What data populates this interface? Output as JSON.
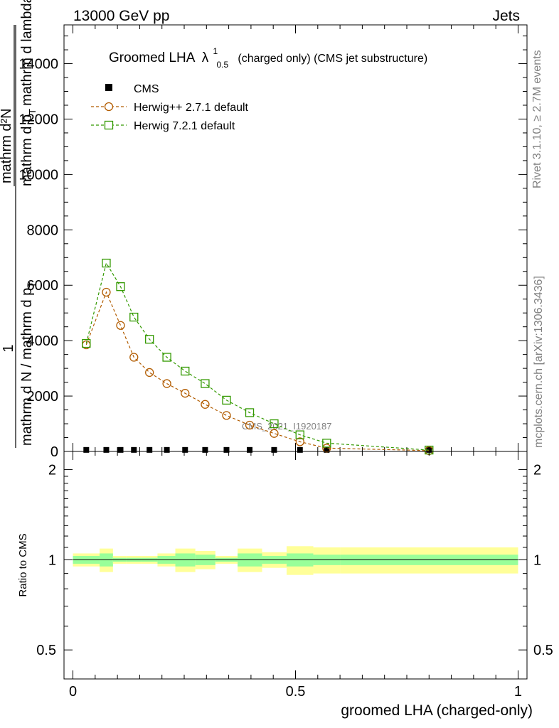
{
  "header": {
    "left": "13000 GeV pp",
    "right": "Jets"
  },
  "side": {
    "rivet": "Rivet 3.1.10, ≥ 2.7M events",
    "mcplots": "mcplots.cern.ch [arXiv:1306.3436]"
  },
  "watermark": "CMS_2021_I1920187",
  "chart_data": [
    {
      "type": "line",
      "title_main": "Groomed LHA",
      "title_lambda": "λ",
      "title_sup": "1",
      "title_sub": "0.5",
      "title_rest": "(charged only) (CMS jet substructure)",
      "xlabel": "groomed LHA (charged-only)",
      "ylabel_num": "1",
      "ylabel_den": "mathrm d N / mathrm d p",
      "ylabel_den_sub": "T",
      "ylabel_right_num": "mathrm d²N",
      "ylabel_right_den": "mathrm d p",
      "ylabel_right_den_sub": "T",
      "ylabel_right_den_tail": "mathrm d lambda",
      "xlim": [
        -0.02,
        1.02
      ],
      "ylim": [
        0,
        15400
      ],
      "yticks": [
        0,
        2000,
        4000,
        6000,
        8000,
        10000,
        12000,
        14000
      ],
      "ytick_labels": [
        "0",
        "2000",
        "4000",
        "6000",
        "8000",
        "10000",
        "12000",
        "14000"
      ],
      "legend": [
        {
          "name": "CMS",
          "color": "#000000",
          "marker": "filled-square"
        },
        {
          "name": "Herwig++ 2.7.1 default",
          "color": "#b25c00",
          "marker": "open-circle"
        },
        {
          "name": "Herwig 7.2.1 default",
          "color": "#339900",
          "marker": "open-square"
        }
      ],
      "series": [
        {
          "name": "CMS",
          "x": [
            0.03,
            0.075,
            0.107,
            0.137,
            0.172,
            0.211,
            0.252,
            0.297,
            0.345,
            0.397,
            0.452,
            0.51,
            0.57,
            0.8
          ],
          "values": [
            30,
            30,
            30,
            30,
            30,
            30,
            30,
            30,
            30,
            30,
            30,
            30,
            30,
            30
          ]
        },
        {
          "name": "Herwig++ 2.7.1 default",
          "x": [
            0.03,
            0.075,
            0.107,
            0.137,
            0.172,
            0.211,
            0.252,
            0.297,
            0.345,
            0.397,
            0.452,
            0.51,
            0.57,
            0.8
          ],
          "values": [
            3850,
            5750,
            4550,
            3400,
            2850,
            2450,
            2100,
            1700,
            1300,
            950,
            650,
            350,
            120,
            30
          ]
        },
        {
          "name": "Herwig 7.2.1 default",
          "x": [
            0.03,
            0.075,
            0.107,
            0.137,
            0.172,
            0.211,
            0.252,
            0.297,
            0.345,
            0.397,
            0.452,
            0.51,
            0.57,
            0.8
          ],
          "values": [
            3900,
            6800,
            5950,
            4850,
            4050,
            3400,
            2900,
            2450,
            1850,
            1400,
            1000,
            600,
            300,
            50
          ]
        }
      ]
    },
    {
      "type": "area",
      "ylabel": "Ratio to CMS",
      "xlabel": "groomed LHA (charged-only)",
      "xlim": [
        -0.02,
        1.02
      ],
      "ylim": [
        0.4,
        2.3
      ],
      "scale": "log",
      "yticks": [
        0.5,
        1,
        2
      ],
      "ytick_labels": [
        "0.5",
        "1",
        "2"
      ],
      "xticks": [
        0,
        0.5,
        1
      ],
      "xtick_labels": [
        "0",
        "0.5",
        "1"
      ],
      "bin_edges": [
        0.0,
        0.06,
        0.09,
        0.12,
        0.155,
        0.19,
        0.23,
        0.275,
        0.32,
        0.37,
        0.425,
        0.48,
        0.54,
        0.6,
        1.0
      ],
      "band_outer": {
        "lo": [
          0.95,
          0.91,
          0.97,
          0.97,
          0.97,
          0.95,
          0.91,
          0.93,
          0.97,
          0.91,
          0.94,
          0.89,
          0.9,
          0.9
        ],
        "hi": [
          1.05,
          1.09,
          1.03,
          1.03,
          1.03,
          1.05,
          1.09,
          1.07,
          1.03,
          1.09,
          1.06,
          1.11,
          1.1,
          1.1
        ]
      },
      "band_inner": {
        "lo": [
          0.97,
          0.95,
          0.985,
          0.985,
          0.985,
          0.97,
          0.95,
          0.96,
          0.985,
          0.95,
          0.97,
          0.95,
          0.96,
          0.96
        ],
        "hi": [
          1.03,
          1.05,
          1.015,
          1.015,
          1.015,
          1.03,
          1.05,
          1.04,
          1.015,
          1.05,
          1.03,
          1.05,
          1.04,
          1.04
        ]
      },
      "colors": {
        "outer": "#ffff99",
        "inner": "#99ff99"
      }
    }
  ]
}
